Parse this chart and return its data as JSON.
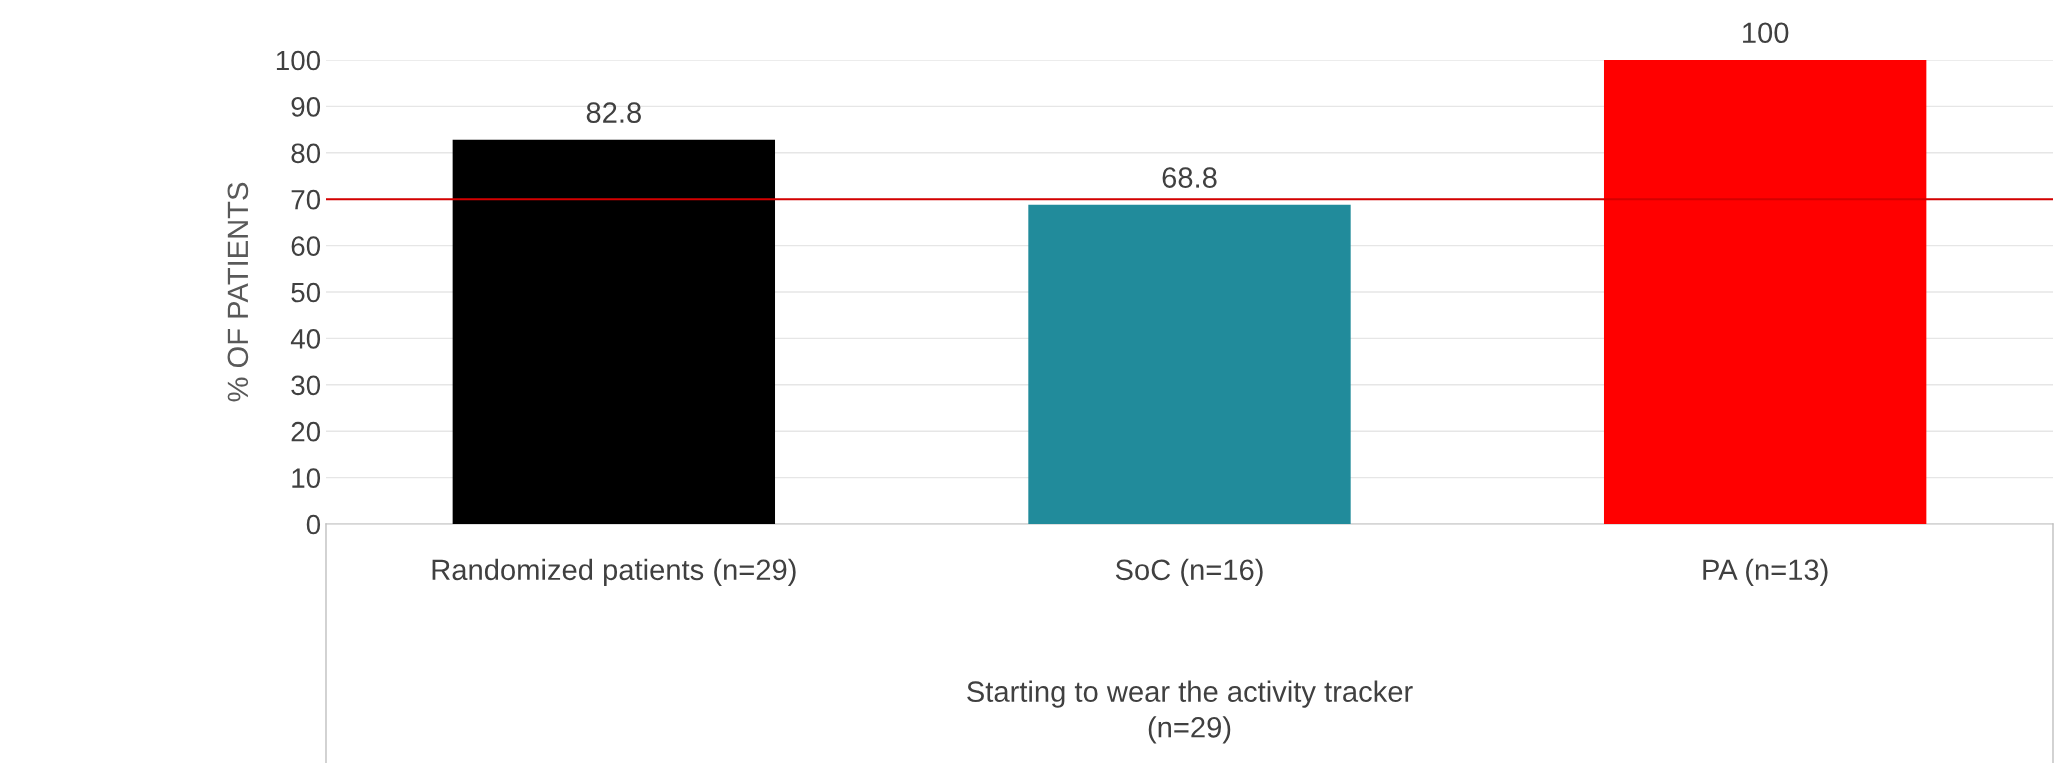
{
  "chart_data": {
    "type": "bar",
    "categories": [
      "Randomized patients (n=29)",
      "SoC (n=16)",
      "PA (n=13)"
    ],
    "values": [
      82.8,
      68.8,
      100
    ],
    "colors": [
      "#000000",
      "#218b9b",
      "#ff0000"
    ],
    "xlabel": "Starting to wear the activity tracker\n(n=29)",
    "ylabel": "% OF PATIENTS",
    "ylim": [
      0,
      100
    ],
    "yticks": [
      0,
      10,
      20,
      30,
      40,
      50,
      60,
      70,
      80,
      90,
      100
    ],
    "grid": "y",
    "data_labels": true,
    "ref_lines": [
      {
        "axis": "y",
        "value": 70,
        "label": null,
        "color": "#d40000"
      }
    ]
  }
}
